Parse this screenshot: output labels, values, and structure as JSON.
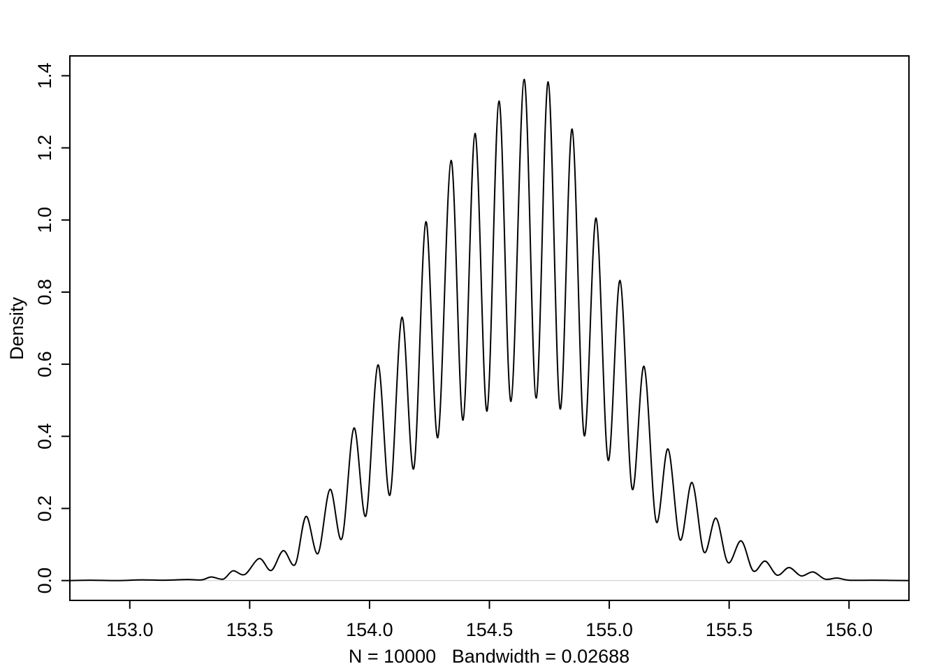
{
  "chart_data": {
    "type": "line",
    "title": "",
    "xlabel": "N = 10000   Bandwidth = 0.02688",
    "ylabel": "Density",
    "xlim": [
      152.75,
      156.25
    ],
    "ylim": [
      -0.055,
      1.455
    ],
    "x_ticks": [
      153.0,
      153.5,
      154.0,
      154.5,
      155.0,
      155.5,
      156.0
    ],
    "x_tick_labels": [
      "153.0",
      "153.5",
      "154.0",
      "154.5",
      "155.0",
      "155.5",
      "156.0"
    ],
    "y_ticks": [
      0.0,
      0.2,
      0.4,
      0.6,
      0.8,
      1.0,
      1.2,
      1.4
    ],
    "y_tick_labels": [
      "0.0",
      "0.2",
      "0.4",
      "0.6",
      "0.8",
      "1.0",
      "1.2",
      "1.4"
    ],
    "grid": false,
    "legend": "none",
    "baseline": 0,
    "colors": {
      "line": "#000000",
      "baseline": "#cccccc",
      "frame": "#000000"
    },
    "series": [
      {
        "points": [
          [
            152.75,
            0.0
          ],
          [
            152.84,
            0.001
          ],
          [
            152.95,
            0.0
          ],
          [
            153.05,
            0.002
          ],
          [
            153.15,
            0.001
          ],
          [
            153.24,
            0.003
          ],
          [
            153.3,
            0.002
          ],
          [
            153.34,
            0.01
          ],
          [
            153.39,
            0.004
          ],
          [
            153.43,
            0.027
          ],
          [
            153.48,
            0.017
          ],
          [
            153.54,
            0.061
          ],
          [
            153.59,
            0.028
          ],
          [
            153.64,
            0.083
          ],
          [
            153.69,
            0.045
          ],
          [
            153.735,
            0.178
          ],
          [
            153.785,
            0.075
          ],
          [
            153.835,
            0.253
          ],
          [
            153.885,
            0.117
          ],
          [
            153.935,
            0.423
          ],
          [
            153.985,
            0.18
          ],
          [
            154.035,
            0.598
          ],
          [
            154.085,
            0.237
          ],
          [
            154.135,
            0.73
          ],
          [
            154.185,
            0.312
          ],
          [
            154.235,
            0.995
          ],
          [
            154.285,
            0.397
          ],
          [
            154.34,
            1.165
          ],
          [
            154.39,
            0.445
          ],
          [
            154.44,
            1.24
          ],
          [
            154.49,
            0.47
          ],
          [
            154.54,
            1.33
          ],
          [
            154.59,
            0.497
          ],
          [
            154.645,
            1.39
          ],
          [
            154.695,
            0.506
          ],
          [
            154.745,
            1.383
          ],
          [
            154.795,
            0.476
          ],
          [
            154.845,
            1.252
          ],
          [
            154.895,
            0.403
          ],
          [
            154.945,
            1.005
          ],
          [
            154.995,
            0.334
          ],
          [
            155.045,
            0.832
          ],
          [
            155.095,
            0.255
          ],
          [
            155.145,
            0.594
          ],
          [
            155.195,
            0.165
          ],
          [
            155.245,
            0.365
          ],
          [
            155.295,
            0.113
          ],
          [
            155.345,
            0.272
          ],
          [
            155.395,
            0.079
          ],
          [
            155.445,
            0.173
          ],
          [
            155.495,
            0.05
          ],
          [
            155.55,
            0.11
          ],
          [
            155.6,
            0.027
          ],
          [
            155.65,
            0.054
          ],
          [
            155.7,
            0.015
          ],
          [
            155.75,
            0.036
          ],
          [
            155.8,
            0.013
          ],
          [
            155.85,
            0.024
          ],
          [
            155.9,
            0.004
          ],
          [
            155.95,
            0.007
          ],
          [
            156.0,
            0.001
          ],
          [
            156.1,
            0.001
          ],
          [
            156.25,
            0.0
          ]
        ]
      }
    ]
  }
}
